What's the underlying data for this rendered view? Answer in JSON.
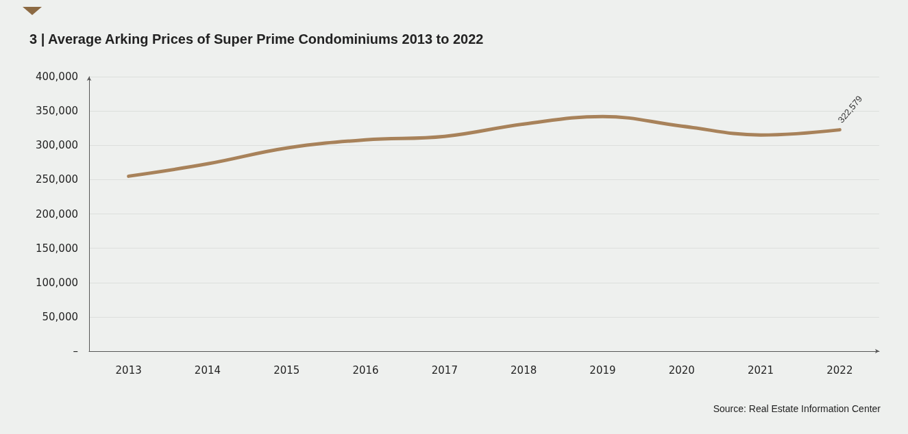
{
  "chart_data": {
    "type": "line",
    "title": "3 | Average Arking Prices of Super Prime Condominiums 2013 to 2022",
    "categories": [
      "2013",
      "2014",
      "2015",
      "2016",
      "2017",
      "2018",
      "2019",
      "2020",
      "2021",
      "2022"
    ],
    "series": [
      {
        "color": "#a8825a",
        "values": [
          255000,
          273000,
          296000,
          308000,
          313000,
          331000,
          342000,
          328000,
          315000,
          322579
        ],
        "value_labels": [
          null,
          null,
          null,
          null,
          null,
          null,
          null,
          null,
          null,
          "322,579"
        ]
      }
    ],
    "ylim": [
      0,
      400000
    ],
    "yticks": [
      {
        "value": 0,
        "label": "–"
      },
      {
        "value": 50000,
        "label": "50,000"
      },
      {
        "value": 100000,
        "label": "100,000"
      },
      {
        "value": 150000,
        "label": "150,000"
      },
      {
        "value": 200000,
        "label": "200,000"
      },
      {
        "value": 250000,
        "label": "250,000"
      },
      {
        "value": 300000,
        "label": "300,000"
      },
      {
        "value": 350000,
        "label": "350,000"
      },
      {
        "value": 400000,
        "label": "400,000"
      }
    ],
    "grid": "y",
    "marker": "none",
    "line_style": "solid",
    "annotations": [
      "Source: Real Estate Information Center"
    ]
  }
}
